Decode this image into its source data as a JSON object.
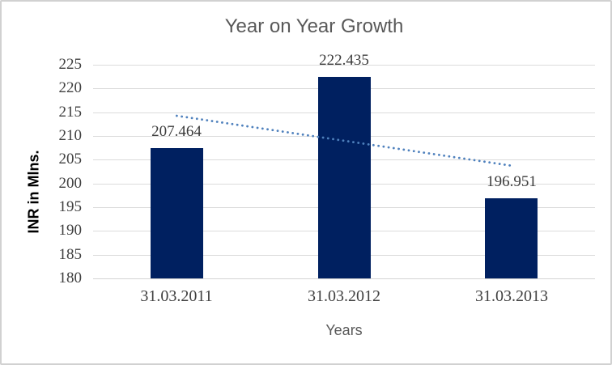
{
  "chart_data": {
    "type": "bar",
    "title": "Year on Year Growth",
    "categories": [
      "31.03.2011",
      "31.03.2012",
      "31.03.2013"
    ],
    "values": [
      207.464,
      222.435,
      196.951
    ],
    "data_labels": [
      "207.464",
      "222.435",
      "196.951"
    ],
    "xlabel": "Years",
    "ylabel": "INR in Mlns.",
    "ylim": [
      180,
      225
    ],
    "yticks": [
      180,
      185,
      190,
      195,
      200,
      205,
      210,
      215,
      220,
      225
    ],
    "grid": true,
    "legend": "none",
    "trendline": {
      "type": "linear",
      "style": "dotted",
      "start_category": "31.03.2011",
      "end_category": "31.03.2013",
      "start_value": 214.25,
      "end_value": 203.74
    }
  },
  "colors": {
    "bar": "#002060",
    "trendline": "#4f81bd",
    "title_text": "#595959",
    "tick_text": "#404040",
    "category_text": "#404040",
    "data_label_text": "#3b3b3b",
    "axis_title_text": "#595959",
    "y_axis_title_text": "#000000",
    "gridline": "#dbdbdb",
    "axis_line": "#d3d3d3",
    "frame_border": "#d1d1d1",
    "background": "#ffffff"
  }
}
